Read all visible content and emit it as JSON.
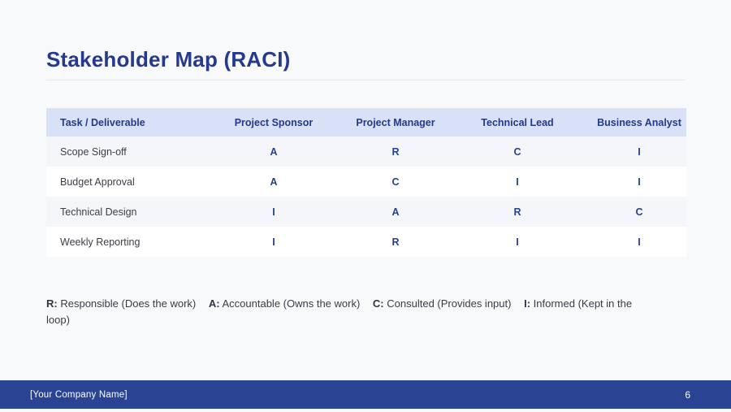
{
  "page": {
    "background_color": "#f8f9fa",
    "accent_color": "#26418f",
    "header_row_color": "#d9e1f6",
    "footer_bar_color": "#2a4392"
  },
  "title": "Stakeholder Map (RACI)",
  "table": {
    "columns": [
      "Task / Deliverable",
      "Project Sponsor",
      "Project Manager",
      "Technical Lead",
      "Business Analyst"
    ],
    "rows": [
      {
        "task": "Scope Sign-off",
        "values": [
          "A",
          "R",
          "C",
          "I"
        ]
      },
      {
        "task": "Budget Approval",
        "values": [
          "A",
          "C",
          "I",
          "I"
        ]
      },
      {
        "task": "Technical Design",
        "values": [
          "I",
          "A",
          "R",
          "C"
        ]
      },
      {
        "task": "Weekly Reporting",
        "values": [
          "I",
          "R",
          "I",
          "I"
        ]
      }
    ]
  },
  "legend": {
    "items": [
      {
        "key": "R:",
        "label": "Responsible (Does the work)"
      },
      {
        "key": "A:",
        "label": "Accountable (Owns the work)"
      },
      {
        "key": "C:",
        "label": "Consulted (Provides input)"
      },
      {
        "key": "I:",
        "label": "Informed (Kept in the loop)"
      }
    ]
  },
  "footer": {
    "company": "[Your Company Name]",
    "page_number": "6"
  }
}
